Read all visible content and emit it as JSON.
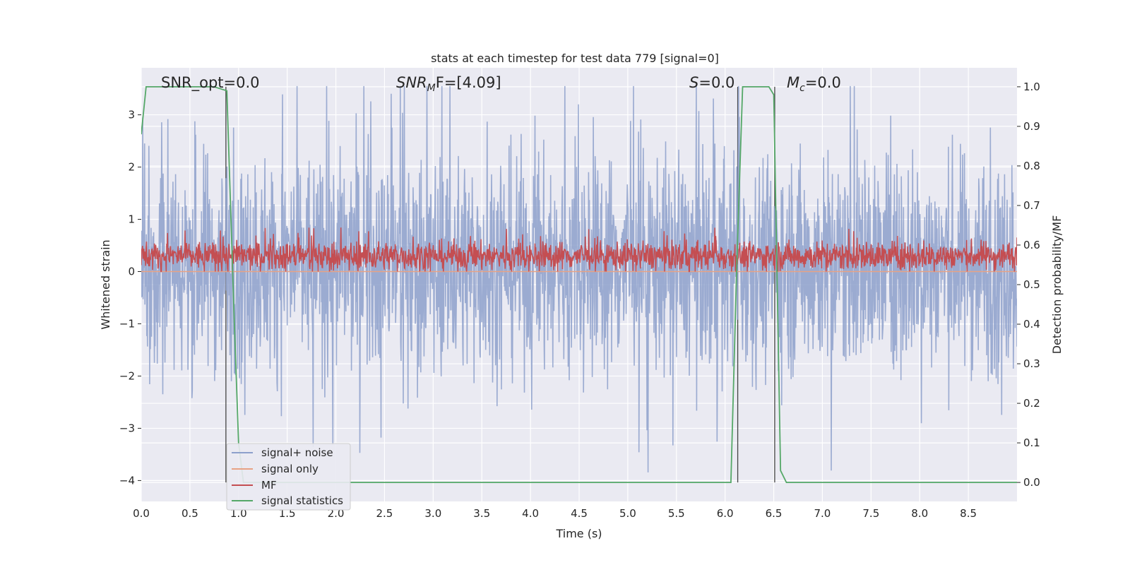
{
  "chart_data": {
    "type": "line",
    "title": "stats at each timestep for test data 779 [signal=0]",
    "xlabel": "Time (s)",
    "ylabel": "Whitened strain",
    "y2label": "Detection probability/MF",
    "xlim": [
      0.0,
      9.0
    ],
    "ylim": [
      -4.4,
      3.9
    ],
    "y2lim": [
      -0.048,
      1.048
    ],
    "xticks": [
      "0.0",
      "0.5",
      "1.0",
      "1.5",
      "2.0",
      "2.5",
      "3.0",
      "3.5",
      "4.0",
      "4.5",
      "5.0",
      "5.5",
      "6.0",
      "6.5",
      "7.0",
      "7.5",
      "8.0",
      "8.5"
    ],
    "yticks": [
      "3",
      "2",
      "1",
      "0",
      "−1",
      "−2",
      "−3",
      "−4"
    ],
    "y2ticks": [
      "1.0",
      "0.9",
      "0.8",
      "0.7",
      "0.6",
      "0.5",
      "0.4",
      "0.3",
      "0.2",
      "0.1",
      "0.0"
    ],
    "grid": true,
    "legend": {
      "placement": "lower-left"
    },
    "annotations": {
      "snr_opt": "SNR_opt=0.0",
      "snr_mf_prefix": "SNR",
      "snr_mf_sub": "M",
      "snr_mf_suffix": "F=[4.09]",
      "s_prefix": "S",
      "s_suffix": "=0.0",
      "mc_prefix": "M",
      "mc_sub": "c",
      "mc_suffix": "=0.0"
    },
    "vlines_x": [
      0.87,
      6.13,
      6.51
    ],
    "series": [
      {
        "name": "signal+ noise",
        "color": "#8da0cb",
        "axis": "left",
        "kind": "noise",
        "typical_range": [
          -1.7,
          2.0
        ],
        "extreme_range": [
          -4.0,
          3.55
        ]
      },
      {
        "name": "signal only",
        "color": "#e8a285",
        "axis": "left",
        "kind": "constant",
        "value": 0.0
      },
      {
        "name": "MF",
        "color": "#c44e52",
        "axis": "left",
        "kind": "noise",
        "typical_range": [
          0.05,
          0.55
        ],
        "extreme_range": [
          0.0,
          0.9
        ]
      },
      {
        "name": "signal statistics",
        "color": "#55a868",
        "axis": "right",
        "kind": "line",
        "x": [
          0.0,
          0.05,
          0.75,
          0.88,
          0.95,
          1.0,
          1.05,
          6.06,
          6.12,
          6.18,
          6.45,
          6.5,
          6.57,
          6.63,
          9.0
        ],
        "y": [
          0.88,
          1.0,
          1.0,
          0.99,
          0.45,
          0.1,
          0.0,
          0.0,
          0.55,
          1.0,
          1.0,
          0.98,
          0.03,
          0.0,
          0.0
        ]
      }
    ]
  }
}
